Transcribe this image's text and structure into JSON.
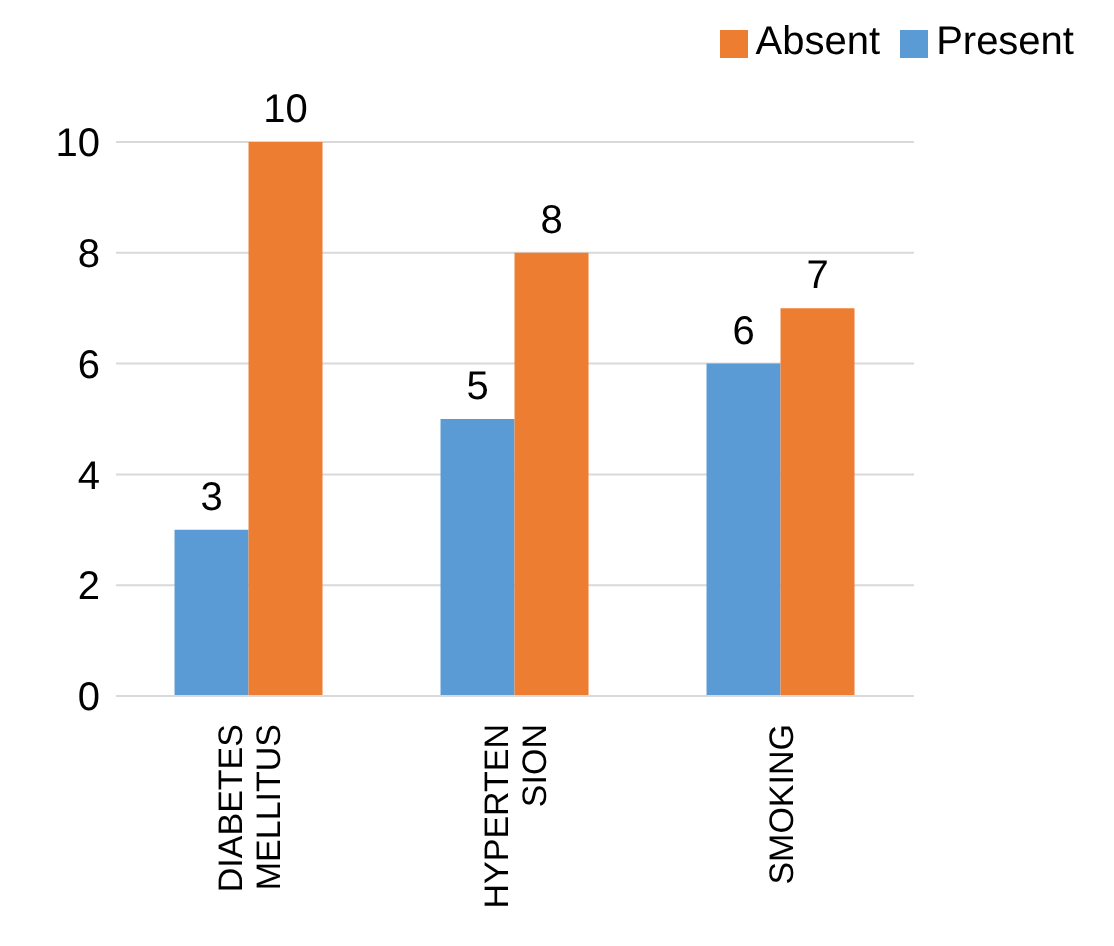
{
  "chart_data": {
    "type": "bar",
    "categories": [
      "DIABETES MELLITUS",
      "HYPERTEN SION",
      "SMOKING"
    ],
    "series": [
      {
        "name": "Present",
        "color": "#5b9bd5",
        "values": [
          3,
          5,
          6
        ]
      },
      {
        "name": "Absent",
        "color": "#ed7d31",
        "values": [
          10,
          8,
          7
        ]
      }
    ],
    "ylim": [
      0,
      10
    ],
    "yticks": [
      0,
      2,
      4,
      6,
      8,
      10
    ],
    "grid": "y",
    "legend": "top right",
    "data_labels": true
  }
}
